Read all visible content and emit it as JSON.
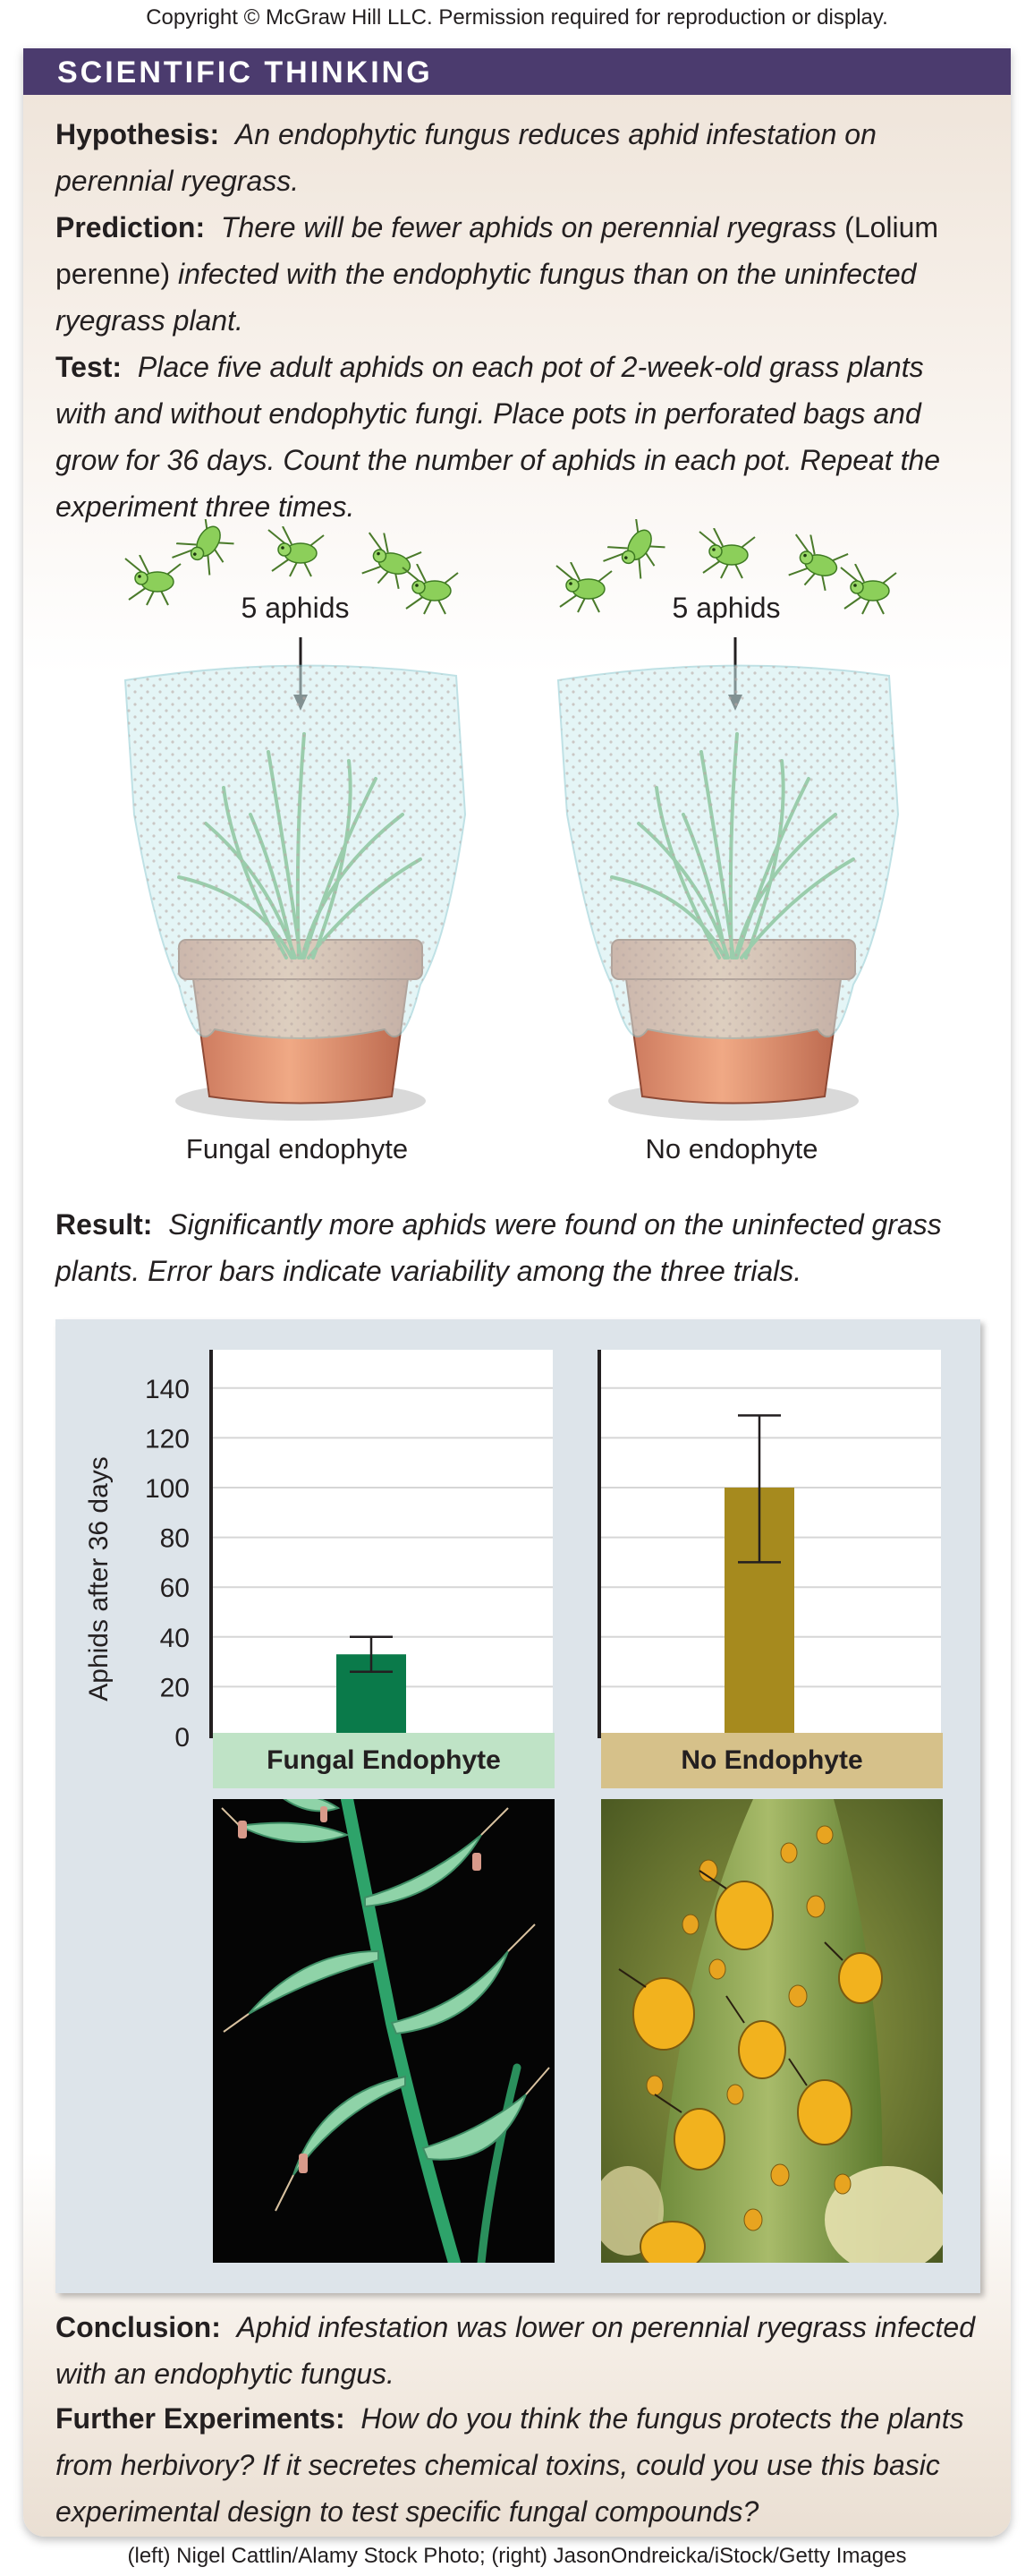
{
  "copyright": "Copyright © McGraw Hill LLC. Permission required for reproduction or display.",
  "banner_title": "SCIENTIFIC THINKING",
  "hypothesis": {
    "label": "Hypothesis:",
    "text": "An endophytic fungus reduces aphid infestation on perennial ryegrass."
  },
  "prediction": {
    "label": "Prediction:",
    "text_a": "There will be fewer aphids on perennial ryegrass",
    "text_b": "(Lolium perenne)",
    "text_c": "infected with the endophytic fungus than on the uninfected ryegrass plant."
  },
  "test": {
    "label": "Test:",
    "text": "Place five adult aphids on each pot of 2-week-old grass plants with and without endophytic fungi. Place pots in perforated bags and grow for 36 days. Count the number of aphids in each pot. Repeat the experiment three times."
  },
  "illustration": {
    "left_aphids_label": "5 aphids",
    "right_aphids_label": "5 aphids",
    "left_pot_label": "Fungal endophyte",
    "right_pot_label": "No endophyte"
  },
  "result": {
    "label": "Result:",
    "text": "Significantly more aphids were found on the uninfected grass  plants. Error bars indicate variability among the three trials."
  },
  "chart_data": {
    "type": "bar",
    "ylabel": "Aphids after 36 days",
    "ylim": [
      0,
      150
    ],
    "y_ticks": [
      0,
      20,
      40,
      60,
      80,
      100,
      120,
      140
    ],
    "grid": true,
    "categories": [
      "Fungal Endophyte",
      "No Endophyte"
    ],
    "values": [
      33,
      100
    ],
    "error_low": [
      26,
      70
    ],
    "error_high": [
      40,
      129
    ],
    "colors": [
      "#0a7a4a",
      "#a68a1e"
    ],
    "label_colors": [
      "#bfe3c6",
      "#d6c18a"
    ]
  },
  "conclusion": {
    "label": "Conclusion:",
    "text": "Aphid infestation was lower on perennial ryegrass infected with an endophytic fungus."
  },
  "further": {
    "label": "Further Experiments:",
    "text": "How do you think the fungus protects the plants from herbivory? If it secretes chemical toxins, could you use this basic experimental design to test specific fungal compounds?"
  },
  "credit": "(left) Nigel Cattlin/Alamy Stock Photo; (right) JasonOndreicka/iStock/Getty Images"
}
